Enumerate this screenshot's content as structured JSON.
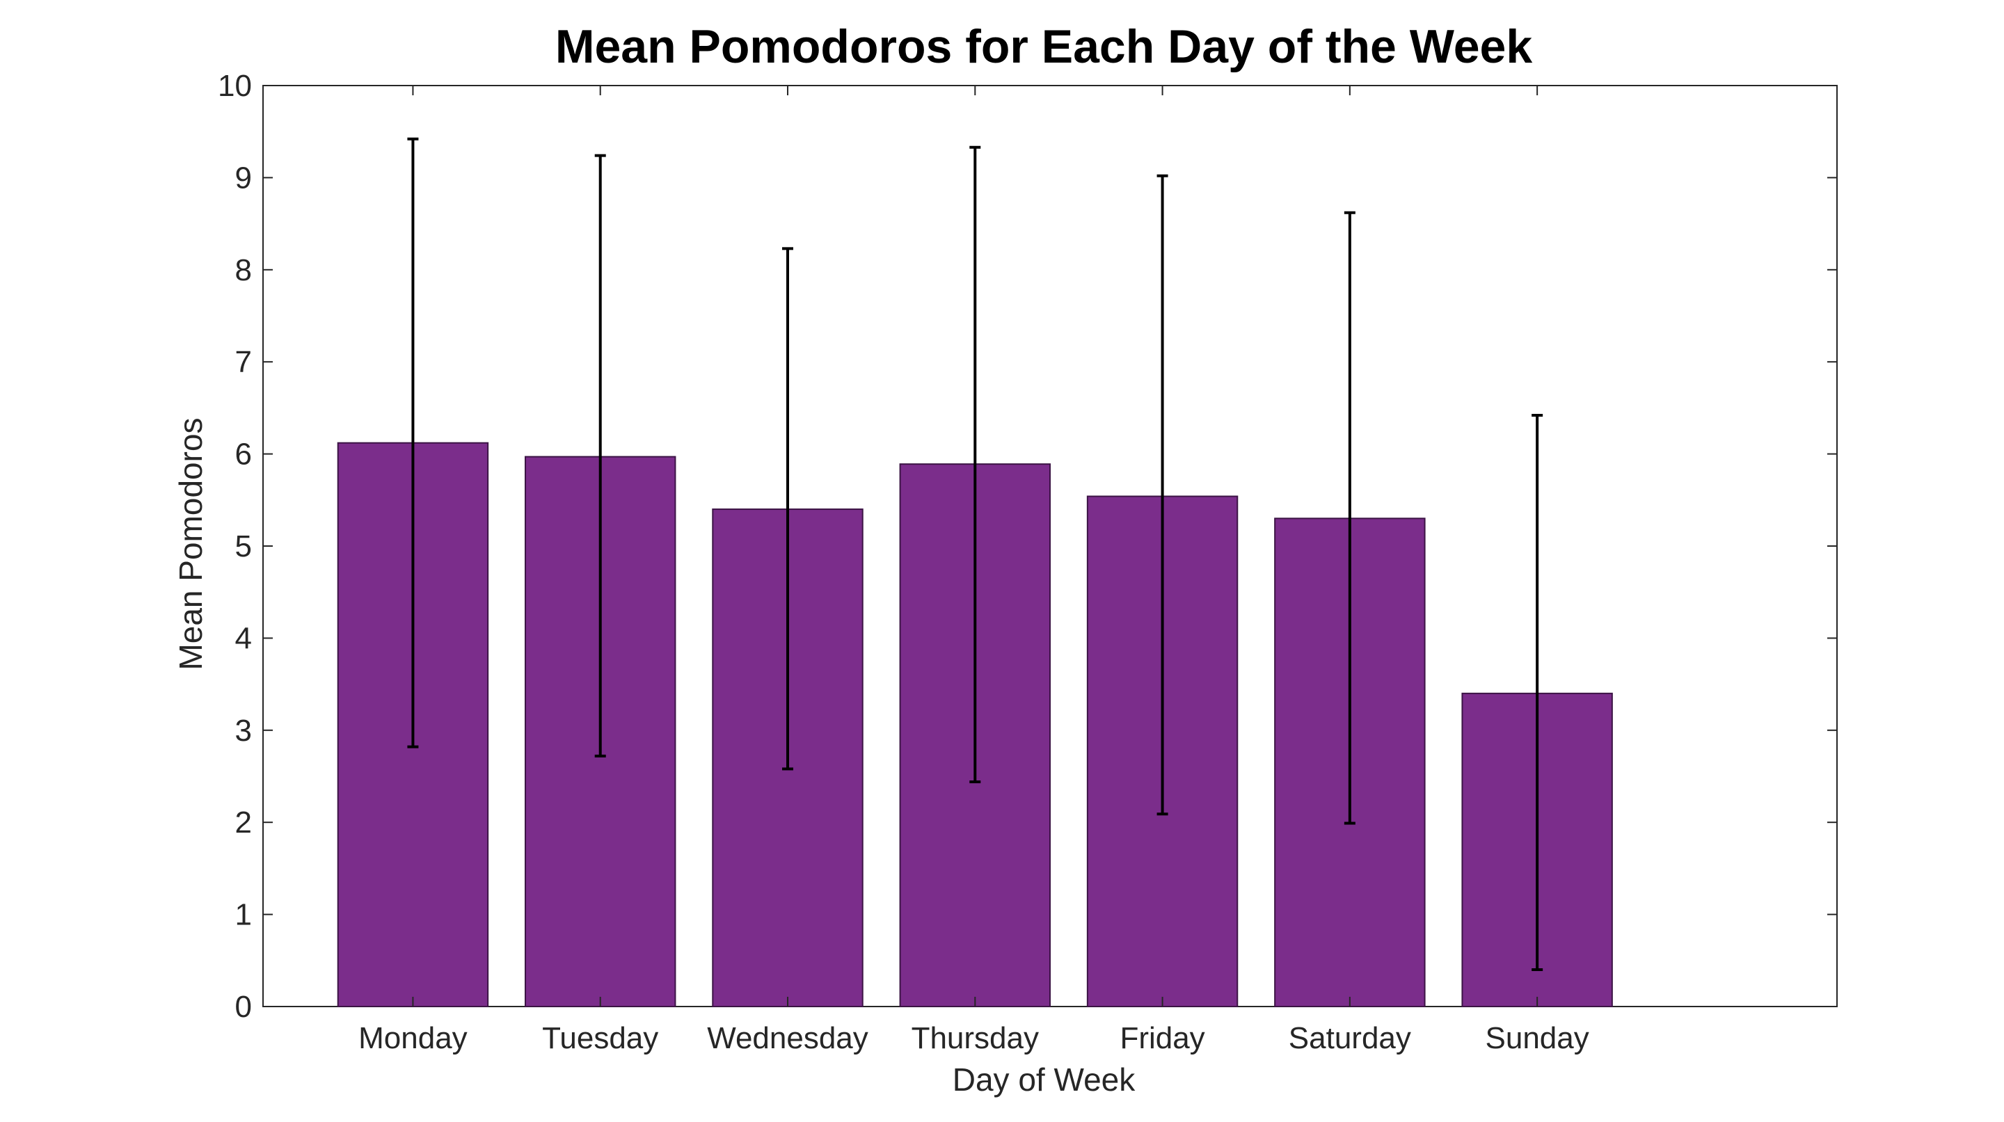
{
  "chart_data": {
    "type": "bar",
    "title": "Mean Pomodoros for Each Day of the Week",
    "xlabel": "Day of Week",
    "ylabel": "Mean Pomodoros",
    "categories": [
      "Monday",
      "Tuesday",
      "Wednesday",
      "Thursday",
      "Friday",
      "Saturday",
      "Sunday"
    ],
    "values": [
      6.12,
      5.97,
      5.4,
      5.89,
      5.54,
      5.3,
      3.4
    ],
    "error_lower": [
      2.82,
      2.72,
      2.58,
      2.44,
      2.09,
      1.99,
      0.4
    ],
    "error_upper": [
      9.42,
      9.24,
      8.23,
      9.33,
      9.02,
      8.62,
      6.42
    ],
    "ylim": [
      0,
      10
    ],
    "xlim": [
      -0.8,
      7.6
    ],
    "yticks": [
      0,
      1,
      2,
      3,
      4,
      5,
      6,
      7,
      8,
      9,
      10
    ],
    "grid": false,
    "colors": {
      "bar_fill": "#7b2d8b",
      "bar_edge": "#3c1445",
      "error_bar": "#000000",
      "axes": "#262626"
    }
  }
}
